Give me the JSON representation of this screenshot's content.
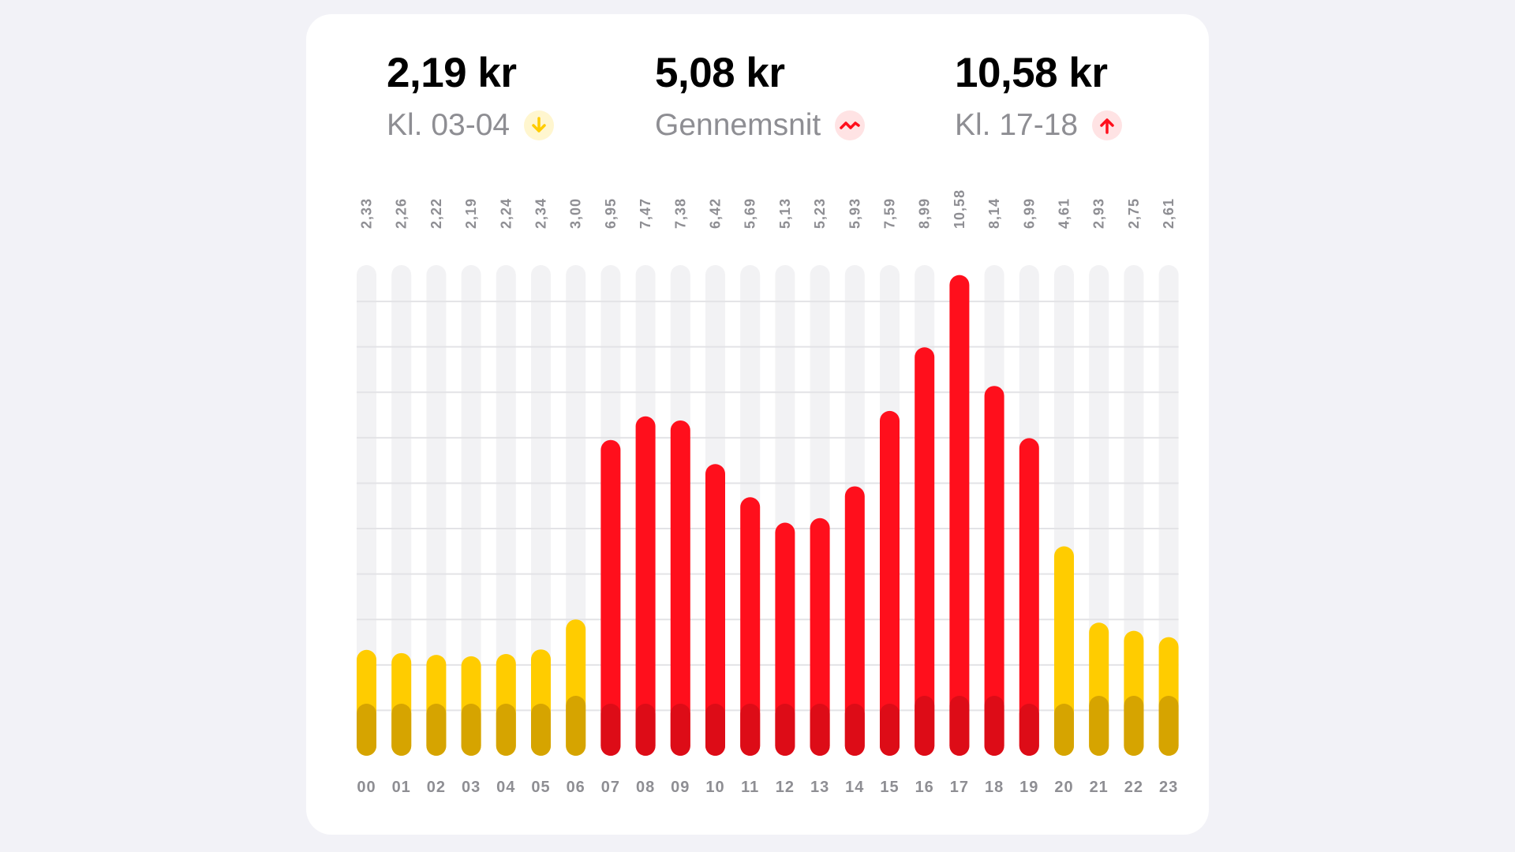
{
  "stats": {
    "low": {
      "value": "2,19 kr",
      "label": "Kl. 03-04",
      "icon": "arrow-down-icon",
      "color": "#ffcc00",
      "icon_bg": "#fff6cf"
    },
    "average": {
      "value": "5,08 kr",
      "label": "Gennemsnit",
      "icon": "trend-wave-icon",
      "color": "#ff0f1c",
      "icon_bg": "#ffe3e4"
    },
    "high": {
      "value": "10,58 kr",
      "label": "Kl. 17-18",
      "icon": "arrow-up-icon",
      "color": "#ff0f1c",
      "icon_bg": "#ffe3e4"
    }
  },
  "chart_data": {
    "type": "bar",
    "categories": [
      "00",
      "01",
      "02",
      "03",
      "04",
      "05",
      "06",
      "07",
      "08",
      "09",
      "10",
      "11",
      "12",
      "13",
      "14",
      "15",
      "16",
      "17",
      "18",
      "19",
      "20",
      "21",
      "22",
      "23"
    ],
    "value_labels": [
      "2,33",
      "2,26",
      "2,22",
      "2,19",
      "2,24",
      "2,34",
      "3,00",
      "6,95",
      "7,47",
      "7,38",
      "6,42",
      "5,69",
      "5,13",
      "5,23",
      "5,93",
      "7,59",
      "8,99",
      "10,58",
      "8,14",
      "6,99",
      "4,61",
      "2,93",
      "2,75",
      "2,61"
    ],
    "series": [
      {
        "values": [
          2.33,
          2.26,
          2.22,
          2.19,
          2.24,
          2.34,
          3.0,
          6.95,
          7.47,
          7.38,
          6.42,
          5.69,
          5.13,
          5.23,
          5.93,
          7.59,
          8.99,
          10.58,
          8.14,
          6.99,
          4.61,
          2.93,
          2.75,
          2.61
        ]
      }
    ],
    "ylim": [
      0,
      11
    ],
    "grid": true,
    "colors": {
      "low": "#ffcc00",
      "low_base": "#d6a400",
      "high": "#ff0f1c",
      "high_base": "#dd0c17",
      "track": "#f2f2f4",
      "grid": "#e3e3e6"
    }
  }
}
